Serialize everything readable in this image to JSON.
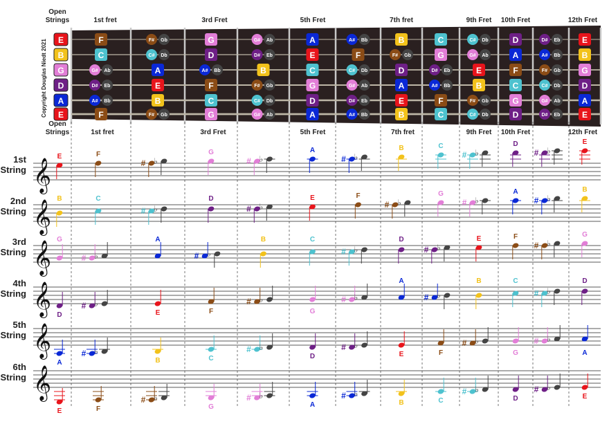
{
  "header": {
    "open_strings": "Open\nStrings",
    "fret_labels": [
      "1st fret",
      "3rd Fret",
      "5th Fret",
      "7th fret",
      "9th Fret",
      "10th Fret",
      "12th Fret"
    ]
  },
  "lower_header": {
    "open_strings": "Open\nStrings",
    "fret_labels": [
      "1st fret",
      "3rd Fret",
      "5th Fret",
      "7th fret",
      "9th Fret",
      "10th Fret",
      "12th Fret"
    ]
  },
  "copyright": "Copyright Douglas Niedt 2021",
  "colors": {
    "E": "#e8141b",
    "F": "#8b4c16",
    "Fs": "#8b4c16",
    "G": "#e27ed7",
    "Gs": "#e27ed7",
    "A": "#0a28d6",
    "As": "#0a28d6",
    "B": "#f2c21b",
    "C": "#4ec2cf",
    "Cs": "#4ec2cf",
    "D": "#6e1f86",
    "Ds": "#6e1f86",
    "neck": "#2a2020",
    "staff": "#222222"
  },
  "strings": [
    {
      "label": "1st\nString",
      "open": "E",
      "notes": [
        "E",
        "F",
        "F#/Gb",
        "G",
        "G#/Ab",
        "A",
        "A#/Bb",
        "B",
        "C",
        "C#/Db",
        "D",
        "D#/Eb",
        "E"
      ]
    },
    {
      "label": "2nd\nString",
      "open": "B",
      "notes": [
        "B",
        "C",
        "C#/Db",
        "D",
        "D#/Eb",
        "E",
        "F",
        "F#/Gb",
        "G",
        "G#/Ab",
        "A",
        "A#/Bb",
        "B"
      ]
    },
    {
      "label": "3rd\nString",
      "open": "G",
      "notes": [
        "G",
        "G#/Ab",
        "A",
        "A#/Bb",
        "B",
        "C",
        "C#/Db",
        "D",
        "D#/Eb",
        "E",
        "F",
        "F#/Gb",
        "G"
      ]
    },
    {
      "label": "4th\nString",
      "open": "D",
      "notes": [
        "D",
        "D#/Eb",
        "E",
        "F",
        "F#/Gb",
        "G",
        "G#/Ab",
        "A",
        "A#/Bb",
        "B",
        "C",
        "C#/Db",
        "D"
      ]
    },
    {
      "label": "5th\nString",
      "open": "A",
      "notes": [
        "A",
        "A#/Bb",
        "B",
        "C",
        "C#/Db",
        "D",
        "D#/Eb",
        "E",
        "F",
        "F#/Gb",
        "G",
        "G#/Ab",
        "A"
      ]
    },
    {
      "label": "6th\nString",
      "open": "E",
      "notes": [
        "E",
        "F",
        "F#/Gb",
        "G",
        "G#/Ab",
        "A",
        "A#/Bb",
        "B",
        "C",
        "C#/Db",
        "D",
        "D#/Eb",
        "E"
      ]
    }
  ],
  "fretboard_rows": [
    [
      "E",
      "F",
      "F#/Gb",
      "G",
      "G#/Ab",
      "A",
      "A#/Bb",
      "B",
      "C",
      "C#/Db",
      "D",
      "D#/Eb",
      "E"
    ],
    [
      "B",
      "C",
      "C#/Db",
      "D",
      "D#/Eb",
      "E",
      "F",
      "F#/Gb",
      "G",
      "G#/Ab",
      "A",
      "A#/Bb",
      "B"
    ],
    [
      "G",
      "G#/Ab",
      "A",
      "A#/Bb",
      "B",
      "C",
      "C#/Db",
      "D",
      "D#/Eb",
      "E",
      "F",
      "F#/Gb",
      "G"
    ],
    [
      "D",
      "D#/Eb",
      "E",
      "F",
      "F#/Gb",
      "G",
      "G#/Ab",
      "A",
      "A#/Bb",
      "B",
      "C",
      "C#/Db",
      "D"
    ],
    [
      "A",
      "A#/Bb",
      "B",
      "C",
      "C#/Db",
      "D",
      "D#/Eb",
      "E",
      "F",
      "F#/Gb",
      "G",
      "G#/Ab",
      "A"
    ],
    [
      "E",
      "F",
      "F#/Gb",
      "G",
      "G#/Ab",
      "A",
      "A#/Bb",
      "B",
      "C",
      "C#/Db",
      "D",
      "D#/Eb",
      "E"
    ]
  ]
}
